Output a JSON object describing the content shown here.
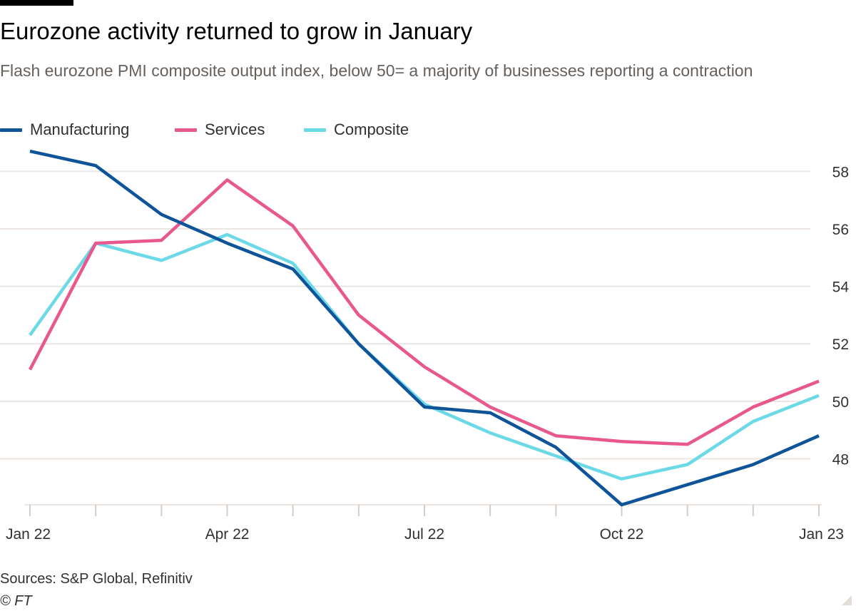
{
  "title": "Eurozone activity returned to grow in January",
  "subtitle": "Flash eurozone PMI composite output index, below 50= a majority of businesses reporting a contraction",
  "source": "Sources: S&P Global, Refinitiv",
  "copyright": "© FT",
  "legend": [
    {
      "label": "Manufacturing",
      "color": "#0f5499"
    },
    {
      "label": "Services",
      "color": "#e8588d"
    },
    {
      "label": "Composite",
      "color": "#6cd9e6"
    }
  ],
  "chart_data": {
    "type": "line",
    "x": [
      "Jan 22",
      "Feb 22",
      "Mar 22",
      "Apr 22",
      "May 22",
      "Jun 22",
      "Jul 22",
      "Aug 22",
      "Sep 22",
      "Oct 22",
      "Nov 22",
      "Dec 22",
      "Jan 23"
    ],
    "x_tick_labels": [
      "Jan 22",
      "Apr 22",
      "Jul 22",
      "Oct 22",
      "Jan 23"
    ],
    "series": [
      {
        "name": "Manufacturing",
        "color": "#0f5499",
        "values": [
          58.7,
          58.2,
          56.5,
          55.5,
          54.6,
          52.0,
          49.8,
          49.6,
          48.4,
          46.4,
          47.1,
          47.8,
          48.8
        ]
      },
      {
        "name": "Services",
        "color": "#e8588d",
        "values": [
          51.1,
          55.5,
          55.6,
          57.7,
          56.1,
          53.0,
          51.2,
          49.8,
          48.8,
          48.6,
          48.5,
          49.8,
          50.7
        ]
      },
      {
        "name": "Composite",
        "color": "#6cd9e6",
        "values": [
          52.3,
          55.5,
          54.9,
          55.8,
          54.8,
          52.0,
          49.9,
          48.9,
          48.1,
          47.3,
          47.8,
          49.3,
          50.2
        ]
      }
    ],
    "y_ticks": [
      48,
      50,
      52,
      54,
      56,
      58
    ],
    "ylim": [
      46.4,
      59.0
    ],
    "y_axis_side": "right",
    "grid": true,
    "legend_position": "top-left",
    "xlabel": "",
    "ylabel": ""
  }
}
